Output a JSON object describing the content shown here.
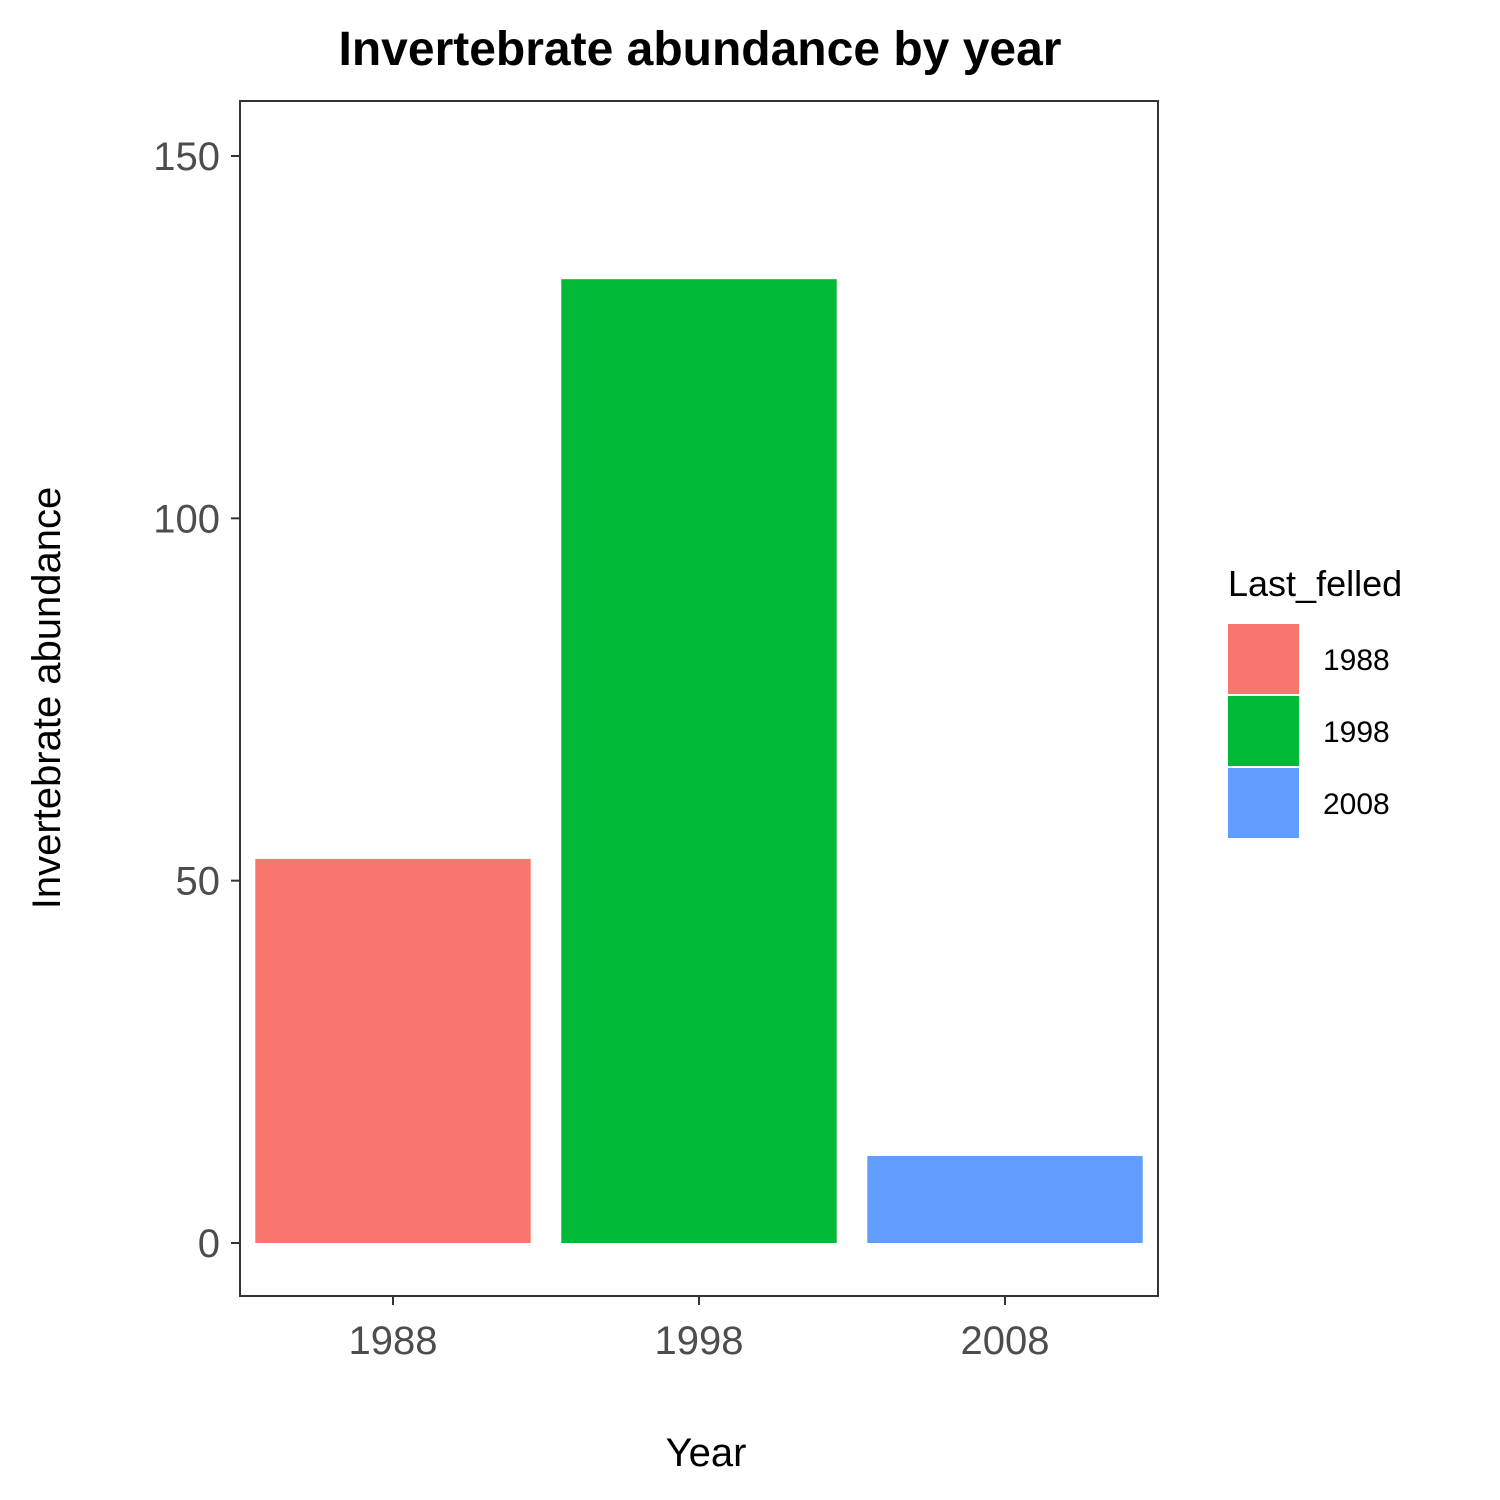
{
  "chart_data": {
    "type": "bar",
    "title": "Invertebrate abundance by year",
    "xlabel": "Year",
    "ylabel": "Invertebrate abundance",
    "categories": [
      "1988",
      "1998",
      "2008"
    ],
    "values": [
      53,
      133,
      12
    ],
    "colors": [
      "#F8766D",
      "#00BA38",
      "#619CFF"
    ],
    "yticks": [
      0,
      50,
      100,
      150
    ],
    "ylim": [
      -7.2,
      158
    ],
    "grid": false,
    "legend": {
      "title": "Last_felled",
      "position": "right",
      "entries": [
        "1988",
        "1998",
        "2008"
      ]
    }
  }
}
